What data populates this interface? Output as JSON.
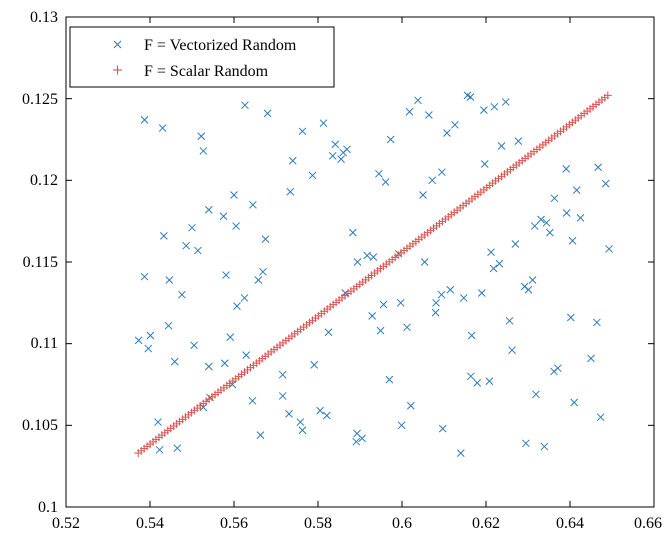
{
  "chart_data": {
    "type": "scatter",
    "xlim": [
      0.52,
      0.66
    ],
    "ylim": [
      0.1,
      0.13
    ],
    "x_ticks": [
      0.52,
      0.54,
      0.56,
      0.58,
      0.6,
      0.62,
      0.64,
      0.66
    ],
    "y_ticks": [
      0.1,
      0.105,
      0.11,
      0.115,
      0.12,
      0.125,
      0.13
    ],
    "x_tick_labels": [
      "0.52",
      "0.54",
      "0.56",
      "0.58",
      "0.6",
      "0.62",
      "0.64",
      "0.66"
    ],
    "y_tick_labels": [
      "0.1",
      "0.105",
      "0.11",
      "0.115",
      "0.12",
      "0.125",
      "0.13"
    ],
    "grid": false,
    "legend_position": "top-left",
    "series": [
      {
        "name": "F = Vectorized Random",
        "marker": "x",
        "color": "#2d7bbd",
        "points": [
          [
            0.5387,
            0.1237
          ],
          [
            0.543,
            0.1232
          ],
          [
            0.5522,
            0.1227
          ],
          [
            0.5527,
            0.1218
          ],
          [
            0.5626,
            0.1246
          ],
          [
            0.568,
            0.1241
          ],
          [
            0.5763,
            0.123
          ],
          [
            0.5813,
            0.1235
          ],
          [
            0.5835,
            0.1215
          ],
          [
            0.5841,
            0.1222
          ],
          [
            0.5855,
            0.1213
          ],
          [
            0.5869,
            0.1219
          ],
          [
            0.586,
            0.1217
          ],
          [
            0.5787,
            0.1203
          ],
          [
            0.5734,
            0.1193
          ],
          [
            0.574,
            0.1212
          ],
          [
            0.5973,
            0.1225
          ],
          [
            0.6018,
            0.1242
          ],
          [
            0.6038,
            0.1249
          ],
          [
            0.6064,
            0.124
          ],
          [
            0.6107,
            0.1229
          ],
          [
            0.6126,
            0.1234
          ],
          [
            0.6156,
            0.1252
          ],
          [
            0.6163,
            0.1251
          ],
          [
            0.6195,
            0.1243
          ],
          [
            0.622,
            0.1245
          ],
          [
            0.6247,
            0.1248
          ],
          [
            0.6237,
            0.1221
          ],
          [
            0.6277,
            0.1224
          ],
          [
            0.6197,
            0.121
          ],
          [
            0.6095,
            0.1205
          ],
          [
            0.6072,
            0.12
          ],
          [
            0.605,
            0.1191
          ],
          [
            0.5945,
            0.1204
          ],
          [
            0.5961,
            0.1199
          ],
          [
            0.56,
            0.1191
          ],
          [
            0.5645,
            0.1185
          ],
          [
            0.5605,
            0.1172
          ],
          [
            0.554,
            0.1182
          ],
          [
            0.5575,
            0.1178
          ],
          [
            0.5433,
            0.1166
          ],
          [
            0.55,
            0.1171
          ],
          [
            0.5486,
            0.116
          ],
          [
            0.5514,
            0.1157
          ],
          [
            0.5675,
            0.1164
          ],
          [
            0.5883,
            0.1168
          ],
          [
            0.6391,
            0.1207
          ],
          [
            0.6416,
            0.1194
          ],
          [
            0.6467,
            0.1208
          ],
          [
            0.6485,
            0.1198
          ],
          [
            0.6363,
            0.1189
          ],
          [
            0.6392,
            0.118
          ],
          [
            0.6425,
            0.1177
          ],
          [
            0.6344,
            0.1174
          ],
          [
            0.6331,
            0.1176
          ],
          [
            0.6316,
            0.1172
          ],
          [
            0.6352,
            0.1168
          ],
          [
            0.6406,
            0.1163
          ],
          [
            0.6493,
            0.1158
          ],
          [
            0.627,
            0.1161
          ],
          [
            0.6218,
            0.1146
          ],
          [
            0.6232,
            0.1149
          ],
          [
            0.6212,
            0.1156
          ],
          [
            0.6054,
            0.115
          ],
          [
            0.5992,
            0.1155
          ],
          [
            0.5894,
            0.115
          ],
          [
            0.5917,
            0.1154
          ],
          [
            0.5932,
            0.1153
          ],
          [
            0.5387,
            0.1141
          ],
          [
            0.5446,
            0.1139
          ],
          [
            0.5476,
            0.113
          ],
          [
            0.5581,
            0.1142
          ],
          [
            0.5669,
            0.1144
          ],
          [
            0.5658,
            0.1139
          ],
          [
            0.5625,
            0.1128
          ],
          [
            0.5607,
            0.1123
          ],
          [
            0.5444,
            0.1111
          ],
          [
            0.5373,
            0.1102
          ],
          [
            0.5401,
            0.1105
          ],
          [
            0.5396,
            0.1097
          ],
          [
            0.5505,
            0.1099
          ],
          [
            0.5591,
            0.1104
          ],
          [
            0.5578,
            0.1088
          ],
          [
            0.554,
            0.1086
          ],
          [
            0.5459,
            0.1089
          ],
          [
            0.5629,
            0.1093
          ],
          [
            0.5716,
            0.1081
          ],
          [
            0.5791,
            0.1087
          ],
          [
            0.5825,
            0.1107
          ],
          [
            0.5929,
            0.1117
          ],
          [
            0.5949,
            0.1108
          ],
          [
            0.5956,
            0.1124
          ],
          [
            0.5865,
            0.1131
          ],
          [
            0.5997,
            0.1125
          ],
          [
            0.6081,
            0.1125
          ],
          [
            0.6094,
            0.113
          ],
          [
            0.6115,
            0.1133
          ],
          [
            0.6147,
            0.1128
          ],
          [
            0.619,
            0.1131
          ],
          [
            0.6292,
            0.1135
          ],
          [
            0.6301,
            0.1133
          ],
          [
            0.6311,
            0.1139
          ],
          [
            0.6256,
            0.1114
          ],
          [
            0.6166,
            0.1105
          ],
          [
            0.608,
            0.1119
          ],
          [
            0.6012,
            0.111
          ],
          [
            0.597,
            0.1078
          ],
          [
            0.6164,
            0.108
          ],
          [
            0.6179,
            0.1076
          ],
          [
            0.6208,
            0.1077
          ],
          [
            0.6262,
            0.1096
          ],
          [
            0.6362,
            0.1083
          ],
          [
            0.6371,
            0.1085
          ],
          [
            0.6402,
            0.1116
          ],
          [
            0.6464,
            0.1113
          ],
          [
            0.645,
            0.1091
          ],
          [
            0.641,
            0.1064
          ],
          [
            0.6319,
            0.1069
          ],
          [
            0.6295,
            0.1039
          ],
          [
            0.6339,
            0.1037
          ],
          [
            0.6473,
            0.1055
          ],
          [
            0.614,
            0.1033
          ],
          [
            0.6097,
            0.1048
          ],
          [
            0.6021,
            0.1062
          ],
          [
            0.5999,
            0.105
          ],
          [
            0.5893,
            0.1045
          ],
          [
            0.5905,
            0.1042
          ],
          [
            0.5891,
            0.104
          ],
          [
            0.5821,
            0.1056
          ],
          [
            0.5805,
            0.1059
          ],
          [
            0.5758,
            0.1052
          ],
          [
            0.5763,
            0.1047
          ],
          [
            0.5731,
            0.1057
          ],
          [
            0.5716,
            0.1068
          ],
          [
            0.5663,
            0.1044
          ],
          [
            0.5644,
            0.1065
          ],
          [
            0.5596,
            0.1075
          ],
          [
            0.5543,
            0.1067
          ],
          [
            0.5527,
            0.1061
          ],
          [
            0.5419,
            0.1052
          ],
          [
            0.5423,
            0.1035
          ],
          [
            0.5465,
            0.1036
          ]
        ]
      },
      {
        "name": "F = Scalar Random",
        "marker": "+",
        "color": "#d9534f",
        "line_from": [
          0.5372,
          0.1033
        ],
        "line_to": [
          0.649,
          0.1252
        ],
        "point_count": 160
      }
    ]
  }
}
